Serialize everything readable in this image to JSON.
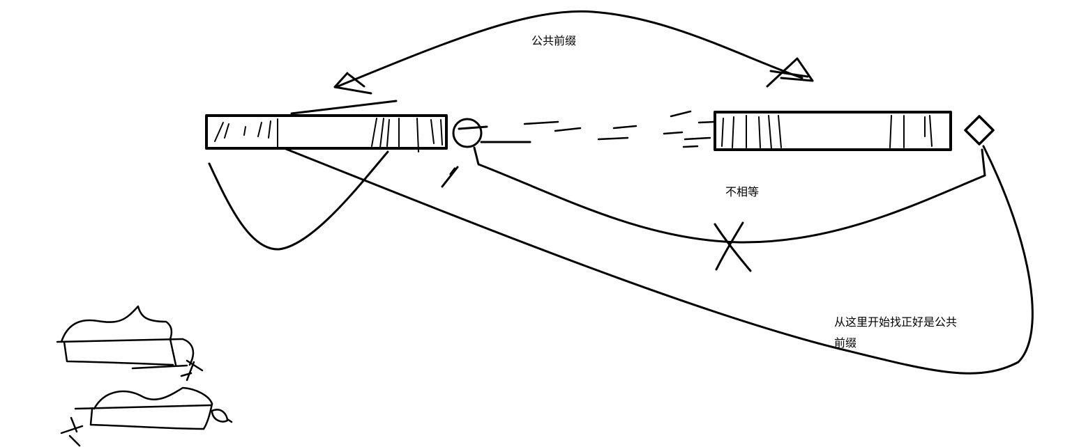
{
  "labels": {
    "common_prefix": "公共前缀",
    "not_equal": "不相等",
    "note": "从这里开始找正好是公共前缀"
  },
  "colors": {
    "stroke": "#000000",
    "background": "#ffffff"
  }
}
